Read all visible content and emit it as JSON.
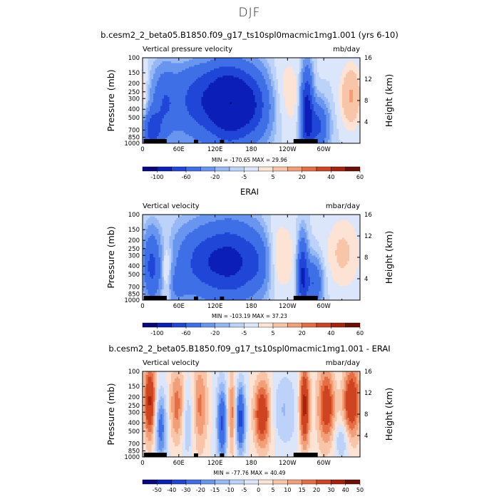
{
  "page": {
    "title": "DJF"
  },
  "colors": {
    "contour": [
      "#08087f",
      "#0b1fb8",
      "#1f46d6",
      "#3f6fe6",
      "#6896ef",
      "#96b8f4",
      "#bcd2f8",
      "#dbe6fb",
      "#fce3d4",
      "#f8c5a8",
      "#f29e76",
      "#e66e45",
      "#cf4420",
      "#a8220c",
      "#6e0e05"
    ]
  },
  "chart_data": [
    {
      "type": "heatmap",
      "id": "model",
      "title": "b.cesm2_2_beta05.B1850.f09_g17_ts10spl0macmic1mg1.001 (yrs 6-10)",
      "subtitle_left": "Vertical pressure velocity",
      "subtitle_right": "mb/day",
      "ylabel": "Pressure (mb)",
      "ylabel_right": "Height (km)",
      "xlim": [
        0,
        360
      ],
      "ylim": [
        1000,
        100
      ],
      "y_scale": "log",
      "x_ticks": [
        "0",
        "60E",
        "120E",
        "180",
        "120W",
        "60W"
      ],
      "x_tick_values": [
        0,
        60,
        120,
        180,
        240,
        300
      ],
      "y_ticks": [
        "100",
        "150",
        "200",
        "250",
        "300",
        "400",
        "500",
        "700",
        "850",
        "1000"
      ],
      "y_tick_values": [
        100,
        150,
        200,
        250,
        300,
        400,
        500,
        700,
        850,
        1000
      ],
      "y2_ticks": [
        "16",
        "12",
        "8",
        "4"
      ],
      "y2_tick_values": [
        16,
        12,
        8,
        4
      ],
      "min_max_label": "MIN = -170.65   MAX =  29.96",
      "min": -170.65,
      "max": 29.96,
      "colorbar_labels": [
        "-100",
        "-60",
        "-20",
        "-5",
        "5",
        "20",
        "40",
        "60"
      ],
      "colorbar_label_index": [
        1,
        3,
        5,
        7,
        9,
        11,
        13,
        15
      ]
    },
    {
      "type": "heatmap",
      "id": "obs",
      "title": "ERAI",
      "subtitle_left": "Vertical velocity",
      "subtitle_right": "mbar/day",
      "ylabel": "Pressure (mb)",
      "ylabel_right": "Height (km)",
      "xlim": [
        0,
        360
      ],
      "ylim": [
        1000,
        100
      ],
      "y_scale": "log",
      "x_ticks": [
        "0",
        "60E",
        "120E",
        "180",
        "120W",
        "60W"
      ],
      "x_tick_values": [
        0,
        60,
        120,
        180,
        240,
        300
      ],
      "y_ticks": [
        "100",
        "150",
        "200",
        "250",
        "300",
        "400",
        "500",
        "700",
        "850",
        "1000"
      ],
      "y_tick_values": [
        100,
        150,
        200,
        250,
        300,
        400,
        500,
        700,
        850,
        1000
      ],
      "y2_ticks": [
        "16",
        "12",
        "8",
        "4"
      ],
      "y2_tick_values": [
        16,
        12,
        8,
        4
      ],
      "min_max_label": "MIN = -103.19   MAX =  37.23",
      "min": -103.19,
      "max": 37.23,
      "colorbar_labels": [
        "-100",
        "-60",
        "-20",
        "-5",
        "5",
        "20",
        "40",
        "60"
      ],
      "colorbar_label_index": [
        1,
        3,
        5,
        7,
        9,
        11,
        13,
        15
      ]
    },
    {
      "type": "heatmap",
      "id": "diff",
      "title": "b.cesm2_2_beta05.B1850.f09_g17_ts10spl0macmic1mg1.001 - ERAI",
      "subtitle_left": "Vertical velocity",
      "subtitle_right": "mbar/day",
      "ylabel": "Pressure (mb)",
      "ylabel_right": "Height (km)",
      "xlim": [
        0,
        360
      ],
      "ylim": [
        1000,
        100
      ],
      "y_scale": "log",
      "x_ticks": [
        "0",
        "60E",
        "120E",
        "180",
        "120W",
        "60W"
      ],
      "x_tick_values": [
        0,
        60,
        120,
        180,
        240,
        300
      ],
      "y_ticks": [
        "100",
        "150",
        "200",
        "250",
        "300",
        "400",
        "500",
        "700",
        "850",
        "1000"
      ],
      "y_tick_values": [
        100,
        150,
        200,
        250,
        300,
        400,
        500,
        700,
        850,
        1000
      ],
      "y2_ticks": [
        "16",
        "12",
        "8",
        "4"
      ],
      "y2_tick_values": [
        16,
        12,
        8,
        4
      ],
      "min_max_label": "MIN = -77.76   MAX =  40.49",
      "min": -77.76,
      "max": 40.49,
      "colorbar_labels": [
        "-50",
        "-40",
        "-30",
        "-20",
        "-15",
        "-10",
        "-5",
        "0",
        "5",
        "10",
        "15",
        "20",
        "30",
        "40",
        "50"
      ],
      "colorbar_label_index": [
        1,
        2,
        3,
        4,
        5,
        6,
        7,
        8,
        9,
        10,
        11,
        12,
        13,
        14,
        15
      ]
    }
  ]
}
